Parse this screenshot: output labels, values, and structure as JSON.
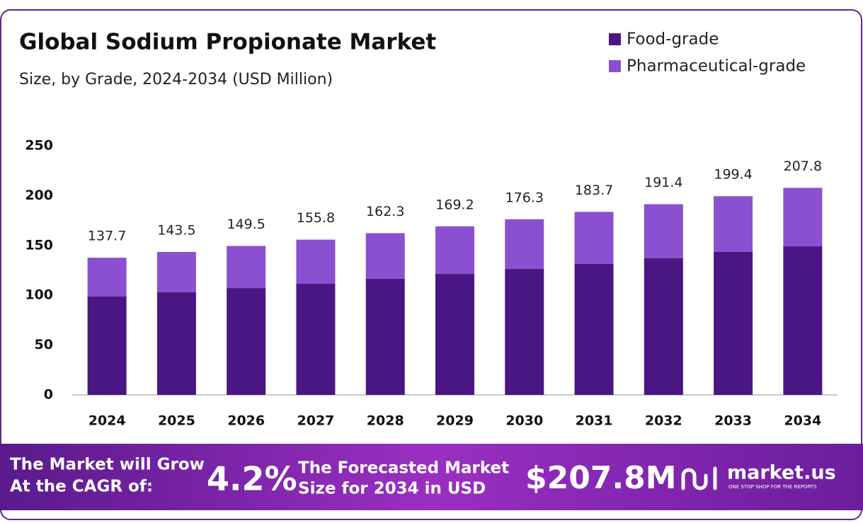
{
  "chart_data": {
    "type": "stacked-bar",
    "title": "Global Sodium Propionate Market",
    "subtitle": "Size, by Grade, 2024-2034 (USD Million)",
    "categories": [
      "2024",
      "2025",
      "2026",
      "2027",
      "2028",
      "2029",
      "2030",
      "2031",
      "2032",
      "2033",
      "2034"
    ],
    "series": [
      {
        "name": "Food-grade",
        "color": "#4a1683",
        "values": [
          98.7,
          103.0,
          107.2,
          111.5,
          116.5,
          121.4,
          126.4,
          131.4,
          137.1,
          143.5,
          149.1
        ]
      },
      {
        "name": "Pharmaceutical-grade",
        "color": "#8b50d1",
        "values": [
          39.0,
          40.5,
          42.3,
          44.3,
          45.8,
          47.8,
          49.9,
          52.3,
          54.3,
          55.9,
          58.7
        ]
      }
    ],
    "totals": [
      "137.7",
      "143.5",
      "149.5",
      "155.8",
      "162.3",
      "169.2",
      "176.3",
      "183.7",
      "191.4",
      "199.4",
      "207.8"
    ],
    "ylim": [
      0,
      250
    ],
    "yticks": [
      0,
      50,
      100,
      150,
      200,
      250
    ],
    "grid": false,
    "legend": "top-right"
  },
  "footer": {
    "grow_line1": "The Market will Grow",
    "grow_line2": "At the CAGR of:",
    "cagr": "4.2%",
    "forecast_line1": "The Forecasted Market",
    "forecast_line2": "Size for 2034 in USD",
    "market_size": "$207.8M",
    "brand": "market.us",
    "tagline": "ONE STOP SHOP FOR THE REPORTS"
  }
}
